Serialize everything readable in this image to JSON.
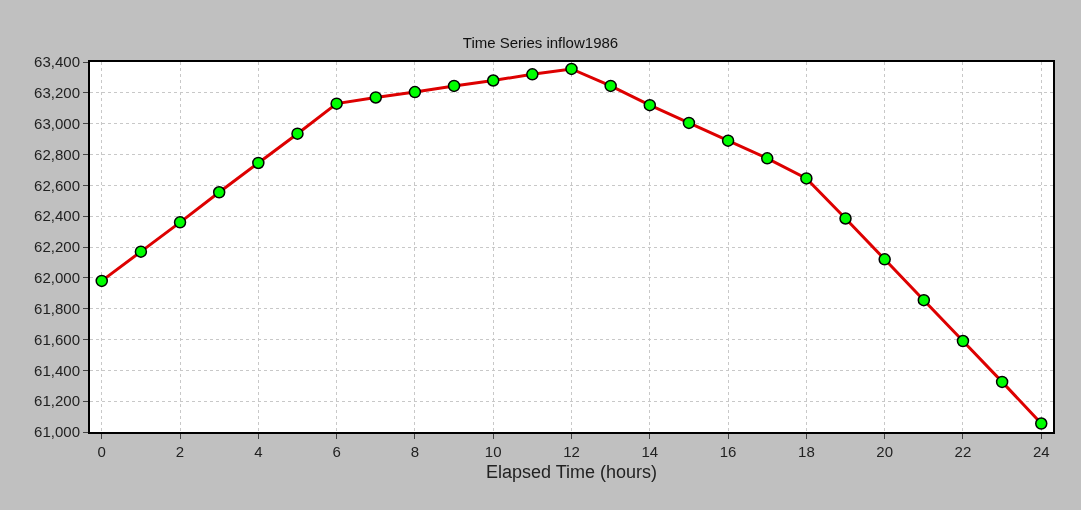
{
  "chart_data": {
    "type": "line",
    "title": "Time Series inflow1986",
    "xlabel": "Elapsed Time (hours)",
    "x": [
      0,
      1,
      2,
      3,
      4,
      5,
      6,
      7,
      8,
      9,
      10,
      11,
      12,
      13,
      14,
      15,
      16,
      17,
      18,
      19,
      20,
      21,
      22,
      23,
      24
    ],
    "series": [
      {
        "color": "#dd0000",
        "values": [
          61980,
          62170,
          62360,
          62555,
          62745,
          62935,
          63130,
          63170,
          63205,
          63245,
          63280,
          63320,
          63355,
          63245,
          63120,
          63005,
          62890,
          62775,
          62645,
          62385,
          62120,
          61855,
          61590,
          61325,
          61055
        ]
      }
    ],
    "xlim": [
      -0.3,
      24.3
    ],
    "xticks": [
      0,
      2,
      4,
      6,
      8,
      10,
      12,
      14,
      16,
      18,
      20,
      22,
      24
    ],
    "ylim": [
      61000,
      63400
    ],
    "yticks": [
      {
        "value": 61000,
        "label": "61,000"
      },
      {
        "value": 61200,
        "label": "61,200"
      },
      {
        "value": 61400,
        "label": "61,400"
      },
      {
        "value": 61600,
        "label": "61,600"
      },
      {
        "value": 61800,
        "label": "61,800"
      },
      {
        "value": 62000,
        "label": "62,000"
      },
      {
        "value": 62200,
        "label": "62,200"
      },
      {
        "value": 62400,
        "label": "62,400"
      },
      {
        "value": 62600,
        "label": "62,600"
      },
      {
        "value": 62800,
        "label": "62,800"
      },
      {
        "value": 63000,
        "label": "63,000"
      },
      {
        "value": 63200,
        "label": "63,200"
      },
      {
        "value": 63400,
        "label": "63,400"
      }
    ],
    "grid": true,
    "marker": "circle",
    "line_style": "solid",
    "legend": false
  }
}
